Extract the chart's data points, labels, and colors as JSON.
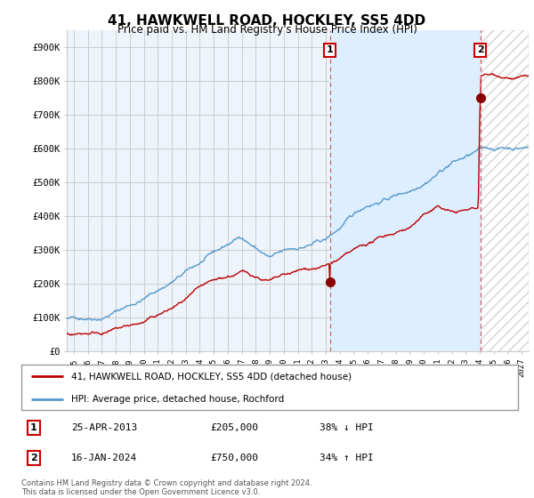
{
  "title": "41, HAWKWELL ROAD, HOCKLEY, SS5 4DD",
  "subtitle": "Price paid vs. HM Land Registry's House Price Index (HPI)",
  "ylabel_ticks": [
    "£0",
    "£100K",
    "£200K",
    "£300K",
    "£400K",
    "£500K",
    "£600K",
    "£700K",
    "£800K",
    "£900K"
  ],
  "ytick_values": [
    0,
    100000,
    200000,
    300000,
    400000,
    500000,
    600000,
    700000,
    800000,
    900000
  ],
  "ylim": [
    0,
    950000
  ],
  "xlim_start": 1994.5,
  "xlim_end": 2027.5,
  "x_ticks": [
    1995,
    1996,
    1997,
    1998,
    1999,
    2000,
    2001,
    2002,
    2003,
    2004,
    2005,
    2006,
    2007,
    2008,
    2009,
    2010,
    2011,
    2012,
    2013,
    2014,
    2015,
    2016,
    2017,
    2018,
    2019,
    2020,
    2021,
    2022,
    2023,
    2024,
    2025,
    2026,
    2027
  ],
  "hpi_color": "#5599cc",
  "hpi_fill_color": "#ddeeff",
  "price_color": "#bb0000",
  "dashed_line_color": "#cc6666",
  "marker_color": "#880000",
  "sale1_x": 2013.3,
  "sale1_y": 205000,
  "sale2_x": 2024.05,
  "sale2_y": 750000,
  "legend_line1": "41, HAWKWELL ROAD, HOCKLEY, SS5 4DD (detached house)",
  "legend_line2": "HPI: Average price, detached house, Rochford",
  "table_rows": [
    {
      "num": "1",
      "date": "25-APR-2013",
      "price": "£205,000",
      "pct": "38% ↓ HPI"
    },
    {
      "num": "2",
      "date": "16-JAN-2024",
      "price": "£750,000",
      "pct": "34% ↑ HPI"
    }
  ],
  "footnote": "Contains HM Land Registry data © Crown copyright and database right 2024.\nThis data is licensed under the Open Government Licence v3.0.",
  "background_color": "#ffffff",
  "grid_color": "#cccccc",
  "plot_bg_color": "#eef4fb"
}
